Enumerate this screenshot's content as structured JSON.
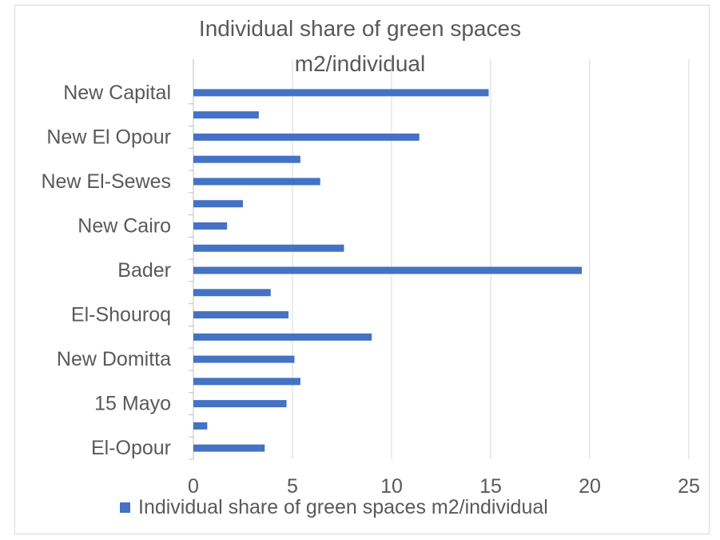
{
  "chart_data": {
    "type": "bar",
    "orientation": "horizontal",
    "title": "Individual share of green spaces",
    "subtitle": "m2/individual",
    "categories": [
      "El-Opour",
      "",
      "15 Mayo",
      "",
      "New Domitta",
      "",
      "El-Shouroq",
      "",
      "Bader",
      "",
      "New Cairo",
      "",
      "New El-Sewes",
      "",
      "New El Opour",
      "",
      "New Capital"
    ],
    "series": [
      {
        "name": "Individual share of green spaces m2/individual",
        "color": "#4472c4",
        "values": [
          3.6,
          0.7,
          4.7,
          5.4,
          5.1,
          9.0,
          4.8,
          3.9,
          19.6,
          7.6,
          1.7,
          2.5,
          6.4,
          5.4,
          11.4,
          3.3,
          14.9
        ]
      }
    ],
    "xlim": [
      0,
      25
    ],
    "xticks": [
      "0",
      "5",
      "10",
      "15",
      "20",
      "25"
    ],
    "grid": true,
    "legend_position": "bottom"
  }
}
